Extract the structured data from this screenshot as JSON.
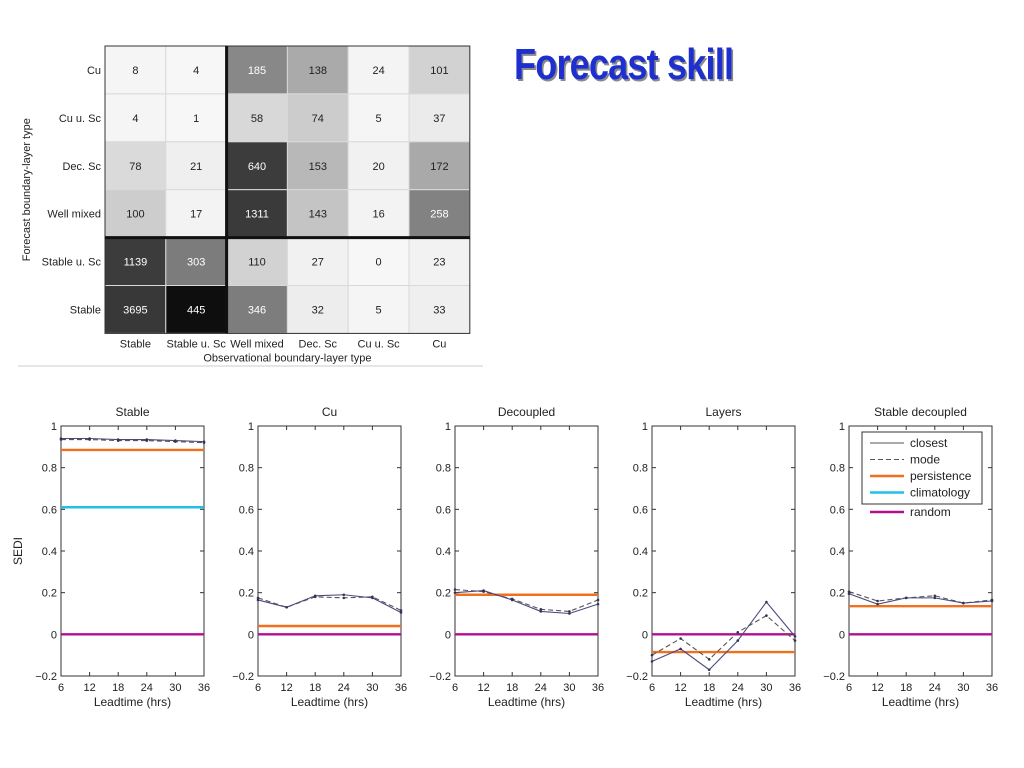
{
  "slide": {
    "title": "Forecast skill"
  },
  "chart_data": [
    {
      "type": "heatmap",
      "title": "",
      "xlabel": "Observational boundary-layer type",
      "ylabel": "Forecast boundary-layer type",
      "x_categories": [
        "Stable",
        "Stable u. Sc",
        "Well mixed",
        "Dec. Sc",
        "Cu u. Sc",
        "Cu"
      ],
      "y_categories": [
        "Cu",
        "Cu u. Sc",
        "Dec. Sc",
        "Well mixed",
        "Stable u. Sc",
        "Stable"
      ],
      "values": [
        [
          8,
          4,
          185,
          138,
          24,
          101
        ],
        [
          4,
          1,
          58,
          74,
          5,
          37
        ],
        [
          78,
          21,
          640,
          153,
          20,
          172
        ],
        [
          100,
          17,
          1311,
          143,
          16,
          258
        ],
        [
          1139,
          303,
          110,
          27,
          0,
          23
        ],
        [
          3695,
          445,
          346,
          32,
          5,
          33
        ]
      ],
      "colors": [
        [
          "#f5f5f5",
          "#f7f7f7",
          "#888888",
          "#aaaaaa",
          "#f4f4f4",
          "#d2d2d2"
        ],
        [
          "#f5f5f5",
          "#f7f7f7",
          "#d8d8d8",
          "#cccccc",
          "#f5f5f5",
          "#ebebeb"
        ],
        [
          "#dadada",
          "#efefef",
          "#3c3c3c",
          "#b8b8b8",
          "#f1f1f1",
          "#a9a9a9"
        ],
        [
          "#cdcdcd",
          "#f3f3f3",
          "#3a3a3a",
          "#c4c4c4",
          "#f3f3f3",
          "#828282"
        ],
        [
          "#3c3c3c",
          "#7c7c7c",
          "#d2d2d2",
          "#f1f1f1",
          "#f7f7f7",
          "#f2f2f2"
        ],
        [
          "#383838",
          "#0e0e0e",
          "#7d7d7d",
          "#ededed",
          "#f5f5f5",
          "#efefef"
        ]
      ],
      "separators": {
        "vertical_after_col": 2,
        "horizontal_after_row": 4
      }
    },
    {
      "type": "line",
      "title": "Stable",
      "xlabel": "Leadtime (hrs)",
      "ylabel": "SEDI",
      "xlim": [
        6,
        36
      ],
      "ylim": [
        -0.2,
        1
      ],
      "xticks": [
        6,
        12,
        18,
        24,
        30,
        36
      ],
      "yticks": [
        -0.2,
        0,
        0.2,
        0.4,
        0.6,
        0.8,
        1
      ],
      "ytick_labels": [
        "−0.2",
        "0",
        "0.2",
        "0.4",
        "0.6",
        "0.8",
        "1"
      ],
      "x": [
        6,
        12,
        18,
        24,
        30,
        36
      ],
      "series": [
        {
          "name": "closest",
          "style": "solid",
          "color": "#4a4a80",
          "values": [
            0.94,
            0.94,
            0.935,
            0.935,
            0.93,
            0.925
          ]
        },
        {
          "name": "mode",
          "style": "dashed",
          "color": "#555555",
          "values": [
            0.935,
            0.935,
            0.93,
            0.93,
            0.925,
            0.92
          ]
        },
        {
          "name": "persistence",
          "style": "solid",
          "color": "#f07020",
          "values": [
            0.885,
            0.885,
            0.885,
            0.885,
            0.885,
            0.885
          ]
        },
        {
          "name": "climatology",
          "style": "solid",
          "color": "#22c0e8",
          "values": [
            0.61,
            0.61,
            0.61,
            0.61,
            0.61,
            0.61
          ]
        },
        {
          "name": "random",
          "style": "solid",
          "color": "#b0108f",
          "values": [
            0,
            0,
            0,
            0,
            0,
            0
          ]
        }
      ]
    },
    {
      "type": "line",
      "title": "Cu",
      "xlabel": "Leadtime (hrs)",
      "ylabel": "",
      "xlim": [
        6,
        36
      ],
      "ylim": [
        -0.2,
        1
      ],
      "xticks": [
        6,
        12,
        18,
        24,
        30,
        36
      ],
      "yticks": [
        -0.2,
        0,
        0.2,
        0.4,
        0.6,
        0.8,
        1
      ],
      "ytick_labels": [
        "−0.2",
        "0",
        "0.2",
        "0.4",
        "0.6",
        "0.8",
        "1"
      ],
      "x": [
        6,
        12,
        18,
        24,
        30,
        36
      ],
      "series": [
        {
          "name": "closest",
          "style": "solid",
          "color": "#4a4a80",
          "values": [
            0.165,
            0.13,
            0.185,
            0.19,
            0.175,
            0.105
          ]
        },
        {
          "name": "mode",
          "style": "dashed",
          "color": "#555555",
          "values": [
            0.175,
            0.13,
            0.18,
            0.175,
            0.18,
            0.115
          ]
        },
        {
          "name": "persistence",
          "style": "solid",
          "color": "#f07020",
          "values": [
            0.04,
            0.04,
            0.04,
            0.04,
            0.04,
            0.04
          ]
        },
        {
          "name": "random",
          "style": "solid",
          "color": "#b0108f",
          "values": [
            0,
            0,
            0,
            0,
            0,
            0
          ]
        }
      ]
    },
    {
      "type": "line",
      "title": "Decoupled",
      "xlabel": "Leadtime (hrs)",
      "ylabel": "",
      "xlim": [
        6,
        36
      ],
      "ylim": [
        -0.2,
        1
      ],
      "xticks": [
        6,
        12,
        18,
        24,
        30,
        36
      ],
      "yticks": [
        -0.2,
        0,
        0.2,
        0.4,
        0.6,
        0.8,
        1
      ],
      "ytick_labels": [
        "−0.2",
        "0",
        "0.2",
        "0.4",
        "0.6",
        "0.8",
        "1"
      ],
      "x": [
        6,
        12,
        18,
        24,
        30,
        36
      ],
      "series": [
        {
          "name": "closest",
          "style": "solid",
          "color": "#4a4a80",
          "values": [
            0.2,
            0.21,
            0.165,
            0.11,
            0.1,
            0.145
          ]
        },
        {
          "name": "mode",
          "style": "dashed",
          "color": "#555555",
          "values": [
            0.215,
            0.205,
            0.17,
            0.12,
            0.11,
            0.165
          ]
        },
        {
          "name": "persistence",
          "style": "solid",
          "color": "#f07020",
          "values": [
            0.19,
            0.19,
            0.19,
            0.19,
            0.19,
            0.19
          ]
        },
        {
          "name": "random",
          "style": "solid",
          "color": "#b0108f",
          "values": [
            0,
            0,
            0,
            0,
            0,
            0
          ]
        }
      ]
    },
    {
      "type": "line",
      "title": "Layers",
      "xlabel": "Leadtime (hrs)",
      "ylabel": "",
      "xlim": [
        6,
        36
      ],
      "ylim": [
        -0.2,
        1
      ],
      "xticks": [
        6,
        12,
        18,
        24,
        30,
        36
      ],
      "yticks": [
        -0.2,
        0,
        0.2,
        0.4,
        0.6,
        0.8,
        1
      ],
      "ytick_labels": [
        "−0.2",
        "0",
        "0.2",
        "0.4",
        "0.6",
        "0.8",
        "1"
      ],
      "x": [
        6,
        12,
        18,
        24,
        30,
        36
      ],
      "series": [
        {
          "name": "closest",
          "style": "solid",
          "color": "#4a4a80",
          "values": [
            -0.13,
            -0.07,
            -0.17,
            -0.03,
            0.155,
            -0.01
          ]
        },
        {
          "name": "mode",
          "style": "dashed",
          "color": "#555555",
          "values": [
            -0.1,
            -0.02,
            -0.12,
            0.01,
            0.09,
            -0.03
          ]
        },
        {
          "name": "persistence",
          "style": "solid",
          "color": "#f07020",
          "values": [
            -0.085,
            -0.085,
            -0.085,
            -0.085,
            -0.085,
            -0.085
          ]
        },
        {
          "name": "random",
          "style": "solid",
          "color": "#b0108f",
          "values": [
            0,
            0,
            0,
            0,
            0,
            0
          ]
        }
      ]
    },
    {
      "type": "line",
      "title": "Stable decoupled",
      "xlabel": "Leadtime (hrs)",
      "ylabel": "",
      "xlim": [
        6,
        36
      ],
      "ylim": [
        -0.2,
        1
      ],
      "xticks": [
        6,
        12,
        18,
        24,
        30,
        36
      ],
      "yticks": [
        -0.2,
        0,
        0.2,
        0.4,
        0.6,
        0.8,
        1
      ],
      "ytick_labels": [
        "−0.2",
        "0",
        "0.2",
        "0.4",
        "0.6",
        "0.8",
        "1"
      ],
      "x": [
        6,
        12,
        18,
        24,
        30,
        36
      ],
      "series": [
        {
          "name": "closest",
          "style": "solid",
          "color": "#4a4a80",
          "values": [
            0.195,
            0.145,
            0.175,
            0.175,
            0.15,
            0.16
          ]
        },
        {
          "name": "mode",
          "style": "dashed",
          "color": "#555555",
          "values": [
            0.205,
            0.16,
            0.175,
            0.185,
            0.15,
            0.165
          ]
        },
        {
          "name": "persistence",
          "style": "solid",
          "color": "#f07020",
          "values": [
            0.135,
            0.135,
            0.135,
            0.135,
            0.135,
            0.135
          ]
        },
        {
          "name": "random",
          "style": "solid",
          "color": "#b0108f",
          "values": [
            0,
            0,
            0,
            0,
            0,
            0
          ]
        }
      ],
      "legend": {
        "placement": "top-right",
        "entries": [
          {
            "label": "closest",
            "style": "solid",
            "color": "#555555"
          },
          {
            "label": "mode",
            "style": "dashed",
            "color": "#555555"
          },
          {
            "label": "persistence",
            "style": "solid",
            "color": "#f07020"
          },
          {
            "label": "climatology",
            "style": "solid",
            "color": "#22c0e8"
          }
        ],
        "outside_entries": [
          {
            "label": "random",
            "style": "solid",
            "color": "#b0108f"
          }
        ]
      }
    }
  ]
}
